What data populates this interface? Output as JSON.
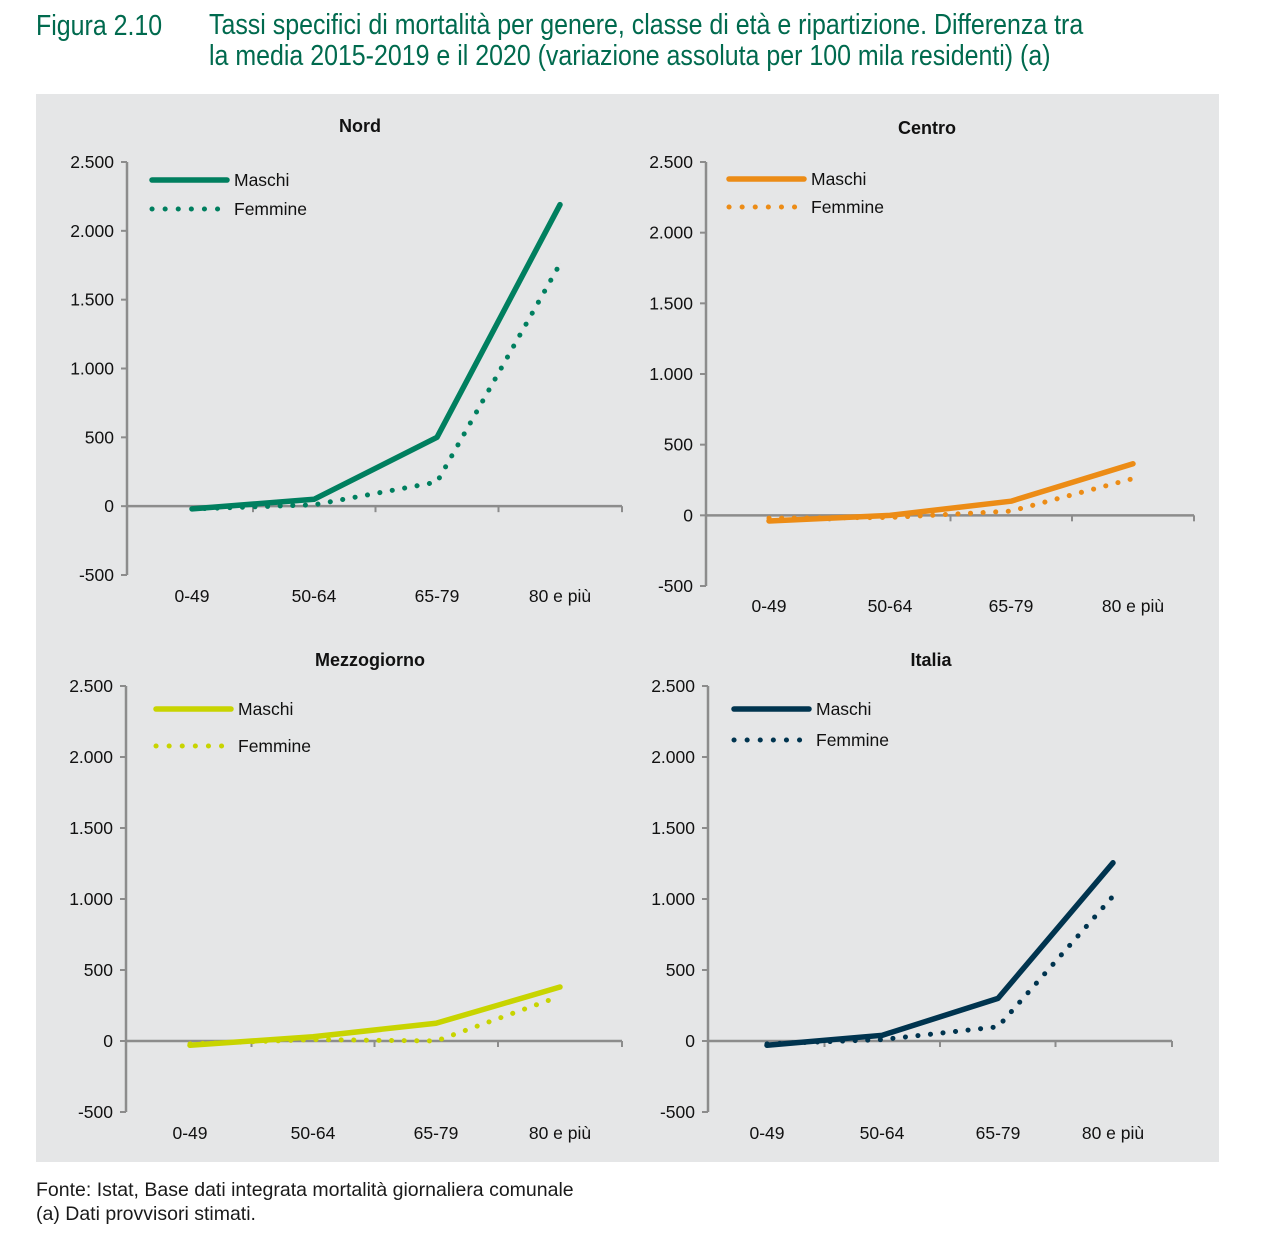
{
  "figure": {
    "number": "Figura 2.10",
    "title_line1": "Tassi specifici di mortalità per genere, classe di età e ripartizione. Differenza tra",
    "title_line2_main": "la media 2015-2019 e il 2020",
    "title_line2_note": " (variazione assoluta per 100 mila residenti) (a)"
  },
  "footer": {
    "source": "Fonte: Istat, Base dati integrata mortalità giornaliera comunale",
    "note": "(a) Dati provvisori stimati."
  },
  "chart_data": [
    {
      "type": "line",
      "title": "Nord",
      "categories": [
        "0-49",
        "50-64",
        "65-79",
        "80 e più"
      ],
      "ylim": [
        -500,
        2500
      ],
      "yticks": [
        -500,
        0,
        500,
        1000,
        1500,
        2000,
        2500
      ],
      "ytick_labels": [
        "-500",
        "0",
        "500",
        "1.000",
        "1.500",
        "2.000",
        "2.500"
      ],
      "xlabel": "",
      "ylabel": "",
      "grid": false,
      "legend": "top-left",
      "color": "#007f5f",
      "series": [
        {
          "name": "Maschi",
          "style": "solid",
          "values": [
            -20,
            50,
            500,
            2190
          ]
        },
        {
          "name": "Femmine",
          "style": "dotted",
          "values": [
            -20,
            10,
            175,
            1760
          ]
        }
      ]
    },
    {
      "type": "line",
      "title": "Centro",
      "categories": [
        "0-49",
        "50-64",
        "65-79",
        "80 e più"
      ],
      "ylim": [
        -500,
        2500
      ],
      "yticks": [
        -500,
        0,
        500,
        1000,
        1500,
        2000,
        2500
      ],
      "ytick_labels": [
        "-500",
        "0",
        "500",
        "1.000",
        "1.500",
        "2.000",
        "2.500"
      ],
      "xlabel": "",
      "ylabel": "",
      "grid": false,
      "legend": "top-left",
      "color": "#ec8c16",
      "series": [
        {
          "name": "Maschi",
          "style": "solid",
          "values": [
            -40,
            0,
            100,
            365
          ]
        },
        {
          "name": "Femmine",
          "style": "dotted",
          "values": [
            -20,
            -15,
            30,
            260
          ]
        }
      ]
    },
    {
      "type": "line",
      "title": "Mezzogiorno",
      "categories": [
        "0-49",
        "50-64",
        "65-79",
        "80 e più"
      ],
      "ylim": [
        -500,
        2500
      ],
      "yticks": [
        -500,
        0,
        500,
        1000,
        1500,
        2000,
        2500
      ],
      "ytick_labels": [
        "-500",
        "0",
        "500",
        "1.000",
        "1.500",
        "2.000",
        "2.500"
      ],
      "xlabel": "",
      "ylabel": "",
      "grid": false,
      "legend": "top-left",
      "color": "#c8d400",
      "series": [
        {
          "name": "Maschi",
          "style": "solid",
          "values": [
            -30,
            30,
            125,
            380
          ]
        },
        {
          "name": "Femmine",
          "style": "dotted",
          "values": [
            -20,
            10,
            0,
            315
          ]
        }
      ]
    },
    {
      "type": "line",
      "title": "Italia",
      "categories": [
        "0-49",
        "50-64",
        "65-79",
        "80 e più"
      ],
      "ylim": [
        -500,
        2500
      ],
      "yticks": [
        -500,
        0,
        500,
        1000,
        1500,
        2000,
        2500
      ],
      "ytick_labels": [
        "-500",
        "0",
        "500",
        "1.000",
        "1.500",
        "2.000",
        "2.500"
      ],
      "xlabel": "",
      "ylabel": "",
      "grid": false,
      "legend": "top-left",
      "color": "#00344f",
      "series": [
        {
          "name": "Maschi",
          "style": "solid",
          "values": [
            -30,
            40,
            300,
            1255
          ]
        },
        {
          "name": "Femmine",
          "style": "dotted",
          "values": [
            -20,
            10,
            100,
            1020
          ]
        }
      ]
    }
  ]
}
